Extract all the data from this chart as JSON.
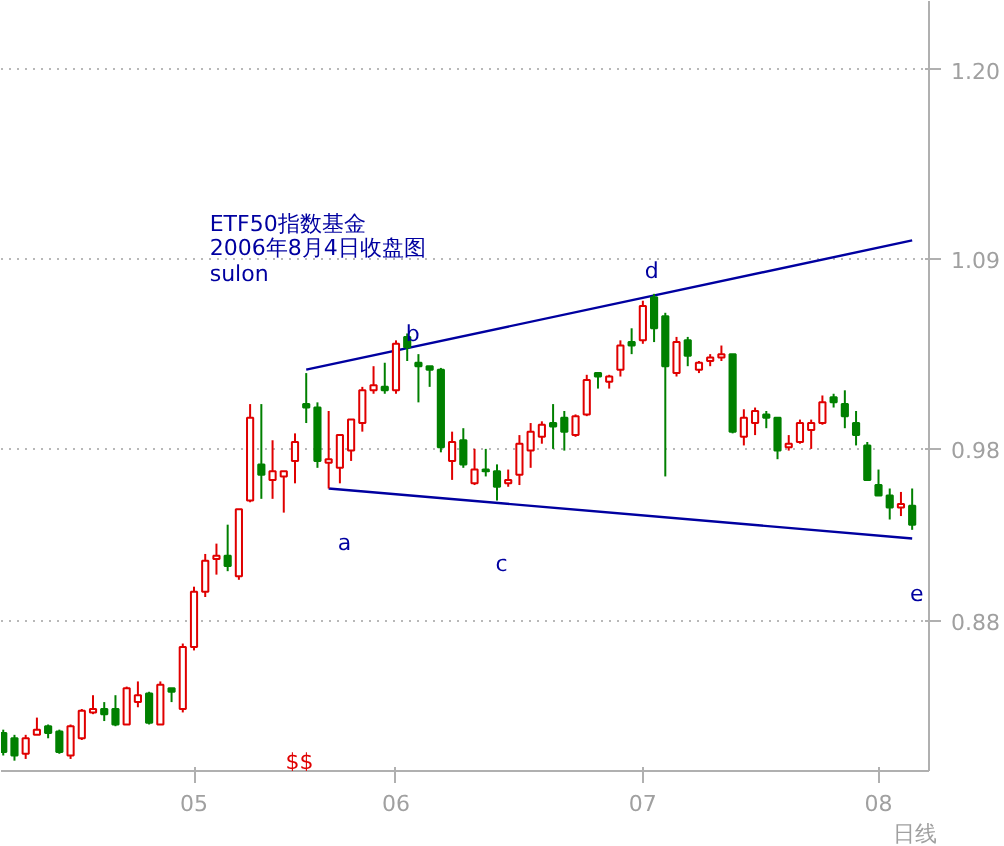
{
  "chart_data": {
    "type": "candlestick",
    "title": "ETF50指数基金",
    "subtitle": "2006年8月4日收盘图",
    "annotations": [
      "sulon",
      "a",
      "b",
      "c",
      "d",
      "e",
      "$$",
      "日线"
    ],
    "categories": [
      null,
      null,
      null,
      null,
      null,
      null,
      null,
      null,
      null,
      null,
      null,
      null,
      null,
      null,
      null,
      null,
      null,
      "05",
      null,
      null,
      null,
      null,
      null,
      null,
      null,
      null,
      null,
      null,
      null,
      null,
      null,
      null,
      null,
      null,
      null,
      "06",
      null,
      null,
      null,
      null,
      null,
      null,
      null,
      null,
      null,
      null,
      null,
      null,
      null,
      null,
      null,
      null,
      null,
      null,
      null,
      null,
      null,
      "07",
      null,
      null,
      null,
      null,
      null,
      null,
      null,
      null,
      null,
      null,
      null,
      null,
      null,
      null,
      null,
      null,
      null,
      null,
      null,
      null,
      "08",
      null,
      null,
      null
    ],
    "ohlc": [
      [
        0.815,
        0.817,
        0.802,
        0.804
      ],
      [
        0.812,
        0.814,
        0.799,
        0.802
      ],
      [
        0.803,
        0.814,
        0.8,
        0.812
      ],
      [
        0.814,
        0.824,
        0.814,
        0.817
      ],
      [
        0.819,
        0.82,
        0.812,
        0.815
      ],
      [
        0.816,
        0.817,
        0.803,
        0.804
      ],
      [
        0.802,
        0.82,
        0.8,
        0.819
      ],
      [
        0.812,
        0.829,
        0.811,
        0.828
      ],
      [
        0.827,
        0.837,
        0.826,
        0.829
      ],
      [
        0.829,
        0.833,
        0.822,
        0.826
      ],
      [
        0.829,
        0.837,
        0.819,
        0.82
      ],
      [
        0.82,
        0.842,
        0.82,
        0.841
      ],
      [
        0.833,
        0.845,
        0.83,
        0.837
      ],
      [
        0.838,
        0.839,
        0.82,
        0.821
      ],
      [
        0.82,
        0.845,
        0.82,
        0.843
      ],
      [
        0.841,
        0.841,
        0.833,
        0.839
      ],
      [
        0.829,
        0.867,
        0.827,
        0.865
      ],
      [
        0.865,
        0.9,
        0.863,
        0.897
      ],
      [
        0.897,
        0.919,
        0.894,
        0.915
      ],
      [
        0.916,
        0.925,
        0.907,
        0.918
      ],
      [
        0.918,
        0.936,
        0.909,
        0.912
      ],
      [
        0.906,
        0.945,
        0.904,
        0.945
      ],
      [
        0.95,
        1.006,
        0.949,
        0.998
      ],
      [
        0.971,
        1.006,
        0.951,
        0.965
      ],
      [
        0.962,
        0.985,
        0.951,
        0.967
      ],
      [
        0.964,
        0.967,
        0.943,
        0.967
      ],
      [
        0.973,
        0.989,
        0.96,
        0.984
      ],
      [
        1.006,
        1.024,
        0.995,
        1.004
      ],
      [
        1.004,
        1.007,
        0.969,
        0.973
      ],
      [
        0.972,
        1.002,
        0.957,
        0.974
      ],
      [
        0.969,
        0.988,
        0.96,
        0.988
      ],
      [
        0.979,
        0.997,
        0.973,
        0.997
      ],
      [
        0.995,
        1.016,
        0.99,
        1.014
      ],
      [
        1.014,
        1.028,
        1.012,
        1.017
      ],
      [
        1.016,
        1.03,
        1.012,
        1.014
      ],
      [
        1.014,
        1.043,
        1.012,
        1.041
      ],
      [
        1.045,
        1.047,
        1.031,
        1.039
      ],
      [
        1.03,
        1.035,
        1.007,
        1.028
      ],
      [
        1.028,
        1.028,
        1.016,
        1.026
      ],
      [
        1.026,
        1.027,
        0.978,
        0.981
      ],
      [
        0.973,
        0.99,
        0.962,
        0.984
      ],
      [
        0.985,
        0.992,
        0.969,
        0.971
      ],
      [
        0.96,
        0.98,
        0.959,
        0.968
      ],
      [
        0.968,
        0.98,
        0.964,
        0.967
      ],
      [
        0.967,
        0.971,
        0.95,
        0.958
      ],
      [
        0.96,
        0.968,
        0.958,
        0.962
      ],
      [
        0.965,
        0.988,
        0.959,
        0.983
      ],
      [
        0.979,
        0.995,
        0.969,
        0.99
      ],
      [
        0.987,
        0.996,
        0.983,
        0.994
      ],
      [
        0.995,
        1.006,
        0.98,
        0.993
      ],
      [
        0.998,
        1.002,
        0.979,
        0.99
      ],
      [
        0.988,
        1.0,
        0.987,
        0.999
      ],
      [
        1.0,
        1.023,
        0.999,
        1.02
      ],
      [
        1.024,
        1.024,
        1.015,
        1.022
      ],
      [
        1.019,
        1.023,
        1.015,
        1.022
      ],
      [
        1.026,
        1.043,
        1.022,
        1.04
      ],
      [
        1.042,
        1.05,
        1.035,
        1.04
      ],
      [
        1.043,
        1.066,
        1.041,
        1.063
      ],
      [
        1.068,
        1.07,
        1.042,
        1.05
      ],
      [
        1.057,
        1.059,
        0.964,
        1.028
      ],
      [
        1.024,
        1.045,
        1.022,
        1.042
      ],
      [
        1.043,
        1.045,
        1.028,
        1.034
      ],
      [
        1.026,
        1.031,
        1.024,
        1.03
      ],
      [
        1.031,
        1.035,
        1.028,
        1.033
      ],
      [
        1.033,
        1.04,
        1.031,
        1.035
      ],
      [
        1.035,
        1.035,
        0.989,
        0.99
      ],
      [
        0.987,
        1.003,
        0.982,
        0.998
      ],
      [
        0.995,
        1.004,
        0.988,
        1.002
      ],
      [
        1.0,
        1.002,
        0.992,
        0.998
      ],
      [
        0.998,
        0.998,
        0.974,
        0.979
      ],
      [
        0.981,
        0.988,
        0.979,
        0.983
      ],
      [
        0.984,
        0.997,
        0.983,
        0.995
      ],
      [
        0.991,
        0.997,
        0.98,
        0.995
      ],
      [
        0.995,
        1.011,
        0.994,
        1.007
      ],
      [
        1.01,
        1.012,
        1.004,
        1.007
      ],
      [
        1.006,
        1.014,
        0.992,
        0.999
      ],
      [
        0.995,
        1.002,
        0.982,
        0.988
      ],
      [
        0.982,
        0.984,
        0.962,
        0.962
      ],
      [
        0.959,
        0.968,
        0.953,
        0.953
      ],
      [
        0.953,
        0.957,
        0.939,
        0.946
      ],
      [
        0.946,
        0.955,
        0.941,
        0.948
      ],
      [
        0.947,
        0.957,
        0.933,
        0.936
      ]
    ],
    "colors": [
      "#008000",
      "#008000",
      "#e00000",
      "#e00000",
      "#008000",
      "#008000",
      "#e00000",
      "#e00000",
      "#e00000",
      "#008000",
      "#008000",
      "#e00000",
      "#e00000",
      "#008000",
      "#e00000",
      "#008000",
      "#e00000",
      "#e00000",
      "#e00000",
      "#e00000",
      "#008000",
      "#e00000",
      "#e00000",
      "#008000",
      "#e00000",
      "#e00000",
      "#e00000",
      "#008000",
      "#008000",
      "#e00000",
      "#e00000",
      "#e00000",
      "#e00000",
      "#e00000",
      "#008000",
      "#e00000",
      "#008000",
      "#008000",
      "#008000",
      "#008000",
      "#e00000",
      "#008000",
      "#e00000",
      "#008000",
      "#008000",
      "#e00000",
      "#e00000",
      "#e00000",
      "#e00000",
      "#008000",
      "#008000",
      "#e00000",
      "#e00000",
      "#008000",
      "#e00000",
      "#e00000",
      "#008000",
      "#e00000",
      "#008000",
      "#008000",
      "#e00000",
      "#008000",
      "#e00000",
      "#e00000",
      "#e00000",
      "#008000",
      "#e00000",
      "#e00000",
      "#008000",
      "#008000",
      "#e00000",
      "#e00000",
      "#e00000",
      "#e00000",
      "#008000",
      "#008000",
      "#008000",
      "#008000",
      "#008000",
      "#008000",
      "#e00000",
      "#008000"
    ],
    "series": [
      {
        "type": "line",
        "color": "#0000a0",
        "values": [
          null,
          null,
          null,
          null,
          null,
          null,
          null,
          null,
          null,
          null,
          null,
          null,
          null,
          null,
          null,
          null,
          null,
          null,
          null,
          null,
          null,
          null,
          null,
          null,
          null,
          null,
          null,
          1.026,
          null,
          null,
          null,
          null,
          null,
          null,
          null,
          null,
          null,
          null,
          null,
          null,
          null,
          null,
          null,
          null,
          null,
          null,
          null,
          null,
          null,
          null,
          null,
          null,
          null,
          null,
          null,
          null,
          null,
          null,
          null,
          null,
          null,
          null,
          null,
          null,
          null,
          null,
          null,
          null,
          null,
          null,
          null,
          null,
          null,
          null,
          null,
          null,
          null,
          null,
          null,
          null,
          null,
          1.101
        ]
      },
      {
        "type": "line",
        "color": "#0000a0",
        "values": [
          null,
          null,
          null,
          null,
          null,
          null,
          null,
          null,
          null,
          null,
          null,
          null,
          null,
          null,
          null,
          null,
          null,
          null,
          null,
          null,
          null,
          null,
          null,
          null,
          null,
          null,
          null,
          null,
          null,
          0.957,
          null,
          null,
          null,
          null,
          null,
          null,
          null,
          null,
          null,
          null,
          null,
          null,
          null,
          null,
          null,
          null,
          null,
          null,
          null,
          null,
          null,
          null,
          null,
          null,
          null,
          null,
          null,
          null,
          null,
          null,
          null,
          null,
          null,
          null,
          null,
          null,
          null,
          null,
          null,
          null,
          null,
          null,
          null,
          null,
          null,
          null,
          null,
          null,
          null,
          null,
          null,
          0.928
        ]
      }
    ],
    "ylim": [
      0.793,
      1.24
    ],
    "yticks": [
      {
        "value": 1.2,
        "label": "1.20"
      },
      1.09,
      0.98,
      0.88
    ],
    "grid": "y"
  }
}
